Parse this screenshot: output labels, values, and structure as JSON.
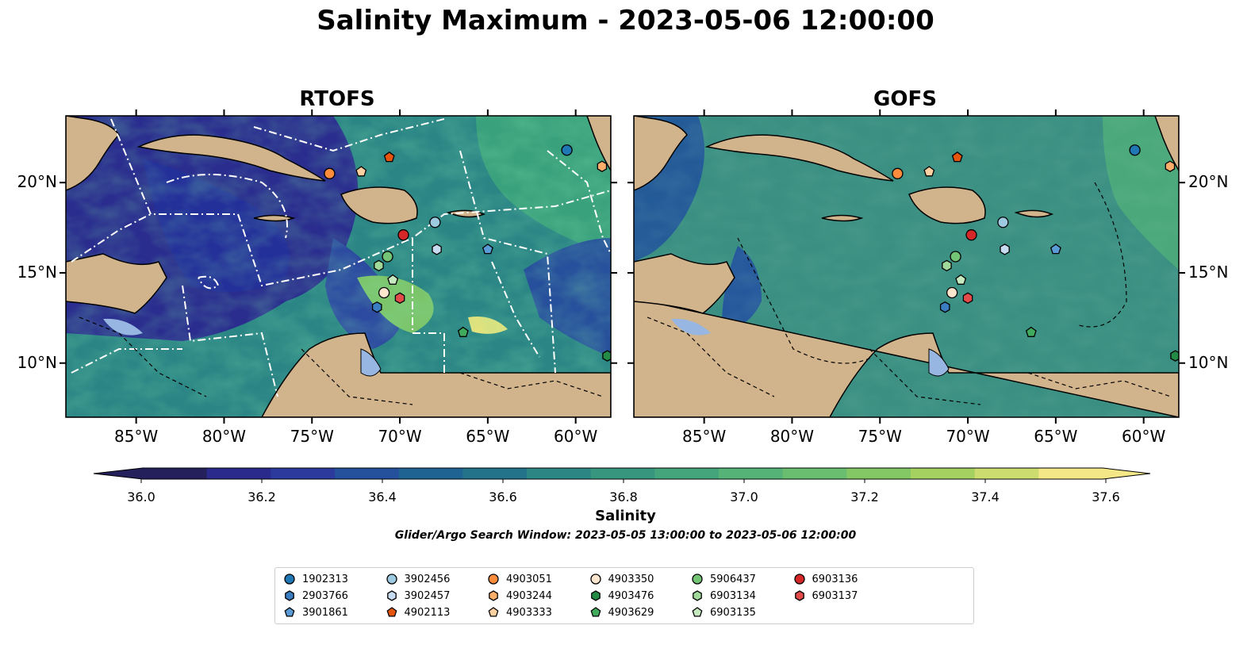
{
  "title": "Salinity Maximum - 2023-05-06 12:00:00",
  "panels": [
    {
      "title": "RTOFS"
    },
    {
      "title": "GOFS"
    }
  ],
  "axes": {
    "lon_ticks": [
      "85°W",
      "80°W",
      "75°W",
      "70°W",
      "65°W",
      "60°W"
    ],
    "lon_values": [
      -85,
      -80,
      -75,
      -70,
      -65,
      -60
    ],
    "lat_ticks": [
      "20°N",
      "15°N",
      "10°N"
    ],
    "lat_values": [
      20,
      15,
      10
    ],
    "lon_range": [
      -89,
      -58
    ],
    "lat_range": [
      7,
      23.7
    ]
  },
  "colorbar": {
    "label": "Salinity",
    "ticks": [
      "36.0",
      "36.2",
      "36.4",
      "36.6",
      "36.8",
      "37.0",
      "37.2",
      "37.4",
      "37.6"
    ],
    "range": [
      35.9,
      37.7
    ],
    "colors": [
      "#24205c",
      "#2a2a8c",
      "#2c3a9e",
      "#24509c",
      "#1f6393",
      "#23748b",
      "#2c8784",
      "#37977e",
      "#44a47b",
      "#55b377",
      "#6abe70",
      "#84c866",
      "#a5d160",
      "#cddc6e",
      "#f3e788"
    ]
  },
  "search_window": "Glider/Argo Search Window: 2023-05-05 13:00:00 to 2023-05-06 12:00:00",
  "colors": {
    "land": "#d2b48c",
    "lake": "#97b6e1",
    "ocean_deep": "#2b8585",
    "ocean_gofs": "#3a8f82"
  },
  "floats": [
    {
      "id": "1902313",
      "color": "#1f77b4",
      "marker": "circle",
      "lon": -60.5,
      "lat": 21.8
    },
    {
      "id": "2903766",
      "color": "#3a7dc0",
      "marker": "hexagon",
      "lon": -71.3,
      "lat": 13.1
    },
    {
      "id": "3901861",
      "color": "#5a9bd5",
      "marker": "pentagon",
      "lon": -65.0,
      "lat": 16.3
    },
    {
      "id": "3902456",
      "color": "#9ecae1",
      "marker": "circle",
      "lon": -68.0,
      "lat": 17.8
    },
    {
      "id": "3902457",
      "color": "#c6dbef",
      "marker": "hexagon",
      "lon": -67.9,
      "lat": 16.3
    },
    {
      "id": "4902113",
      "color": "#e6550d",
      "marker": "pentagon",
      "lon": -70.6,
      "lat": 21.4
    },
    {
      "id": "4903051",
      "color": "#fd8d3c",
      "marker": "circle",
      "lon": -74.0,
      "lat": 20.5
    },
    {
      "id": "4903244",
      "color": "#fdae6b",
      "marker": "hexagon",
      "lon": -58.5,
      "lat": 20.9
    },
    {
      "id": "4903333",
      "color": "#fdd0a2",
      "marker": "pentagon",
      "lon": -72.2,
      "lat": 20.6
    },
    {
      "id": "4903350",
      "color": "#fee6ce",
      "marker": "circle",
      "lon": -70.9,
      "lat": 13.9
    },
    {
      "id": "4903476",
      "color": "#238b45",
      "marker": "hexagon",
      "lon": -58.2,
      "lat": 10.4
    },
    {
      "id": "4903629",
      "color": "#41ab5d",
      "marker": "pentagon",
      "lon": -66.4,
      "lat": 11.7
    },
    {
      "id": "5906437",
      "color": "#74c476",
      "marker": "circle",
      "lon": -70.7,
      "lat": 15.9
    },
    {
      "id": "6903134",
      "color": "#a1d99b",
      "marker": "hexagon",
      "lon": -71.2,
      "lat": 15.4
    },
    {
      "id": "6903135",
      "color": "#c7e9c0",
      "marker": "pentagon",
      "lon": -70.4,
      "lat": 14.6
    },
    {
      "id": "6903136",
      "color": "#d62728",
      "marker": "circle",
      "lon": -69.8,
      "lat": 17.1
    },
    {
      "id": "6903137",
      "color": "#e34a4a",
      "marker": "hexagon",
      "lon": -70.0,
      "lat": 13.6
    }
  ]
}
